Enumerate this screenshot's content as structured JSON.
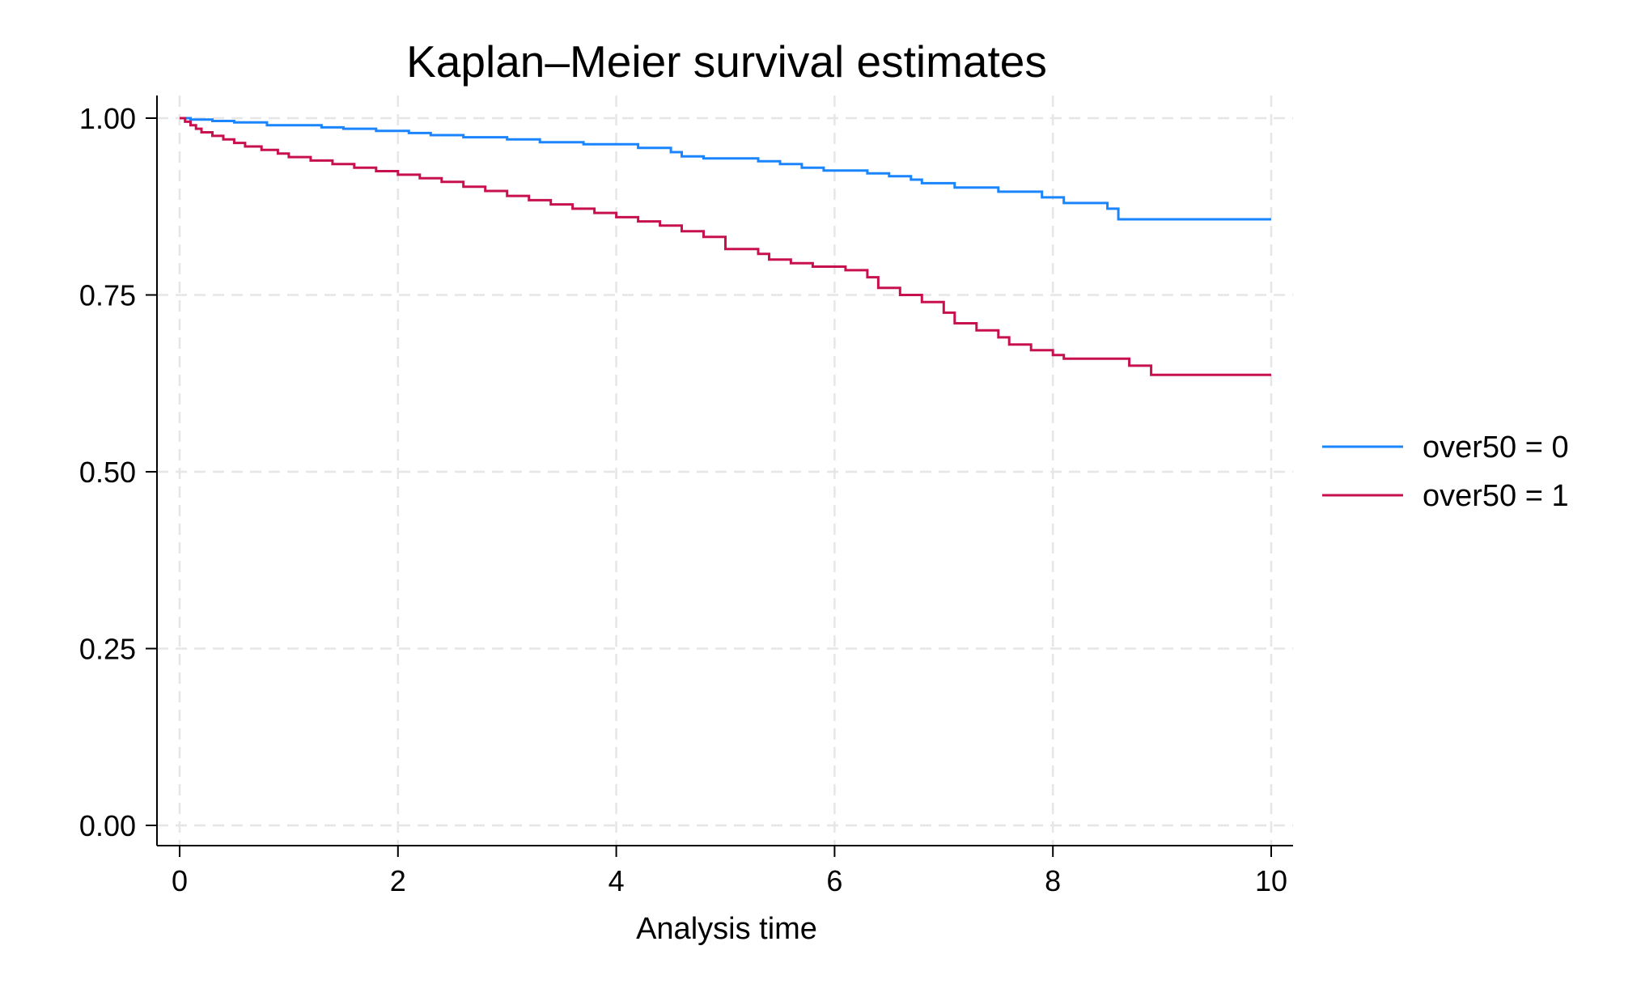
{
  "chart_data": {
    "type": "line",
    "step": true,
    "title": "Kaplan–Meier survival estimates",
    "xlabel": "Analysis time",
    "ylabel": "",
    "xlim": [
      0,
      10
    ],
    "ylim": [
      0,
      1
    ],
    "xticks": [
      "0",
      "2",
      "4",
      "6",
      "8",
      "10"
    ],
    "yticks": [
      "0.00",
      "0.25",
      "0.50",
      "0.75",
      "1.00"
    ],
    "grid": true,
    "legend_position": "right",
    "series": [
      {
        "name": "over50 = 0",
        "color": "#1a85ff",
        "points": [
          [
            0,
            1.0
          ],
          [
            0.1,
            0.998
          ],
          [
            0.3,
            0.996
          ],
          [
            0.5,
            0.994
          ],
          [
            0.8,
            0.99
          ],
          [
            1.3,
            0.987
          ],
          [
            1.5,
            0.985
          ],
          [
            1.8,
            0.982
          ],
          [
            2.1,
            0.979
          ],
          [
            2.3,
            0.976
          ],
          [
            2.6,
            0.973
          ],
          [
            3.0,
            0.97
          ],
          [
            3.3,
            0.966
          ],
          [
            3.7,
            0.963
          ],
          [
            4.2,
            0.958
          ],
          [
            4.5,
            0.952
          ],
          [
            4.6,
            0.946
          ],
          [
            4.8,
            0.943
          ],
          [
            5.3,
            0.939
          ],
          [
            5.5,
            0.935
          ],
          [
            5.7,
            0.93
          ],
          [
            5.9,
            0.926
          ],
          [
            6.3,
            0.922
          ],
          [
            6.5,
            0.918
          ],
          [
            6.7,
            0.913
          ],
          [
            6.8,
            0.908
          ],
          [
            7.1,
            0.902
          ],
          [
            7.5,
            0.896
          ],
          [
            7.9,
            0.888
          ],
          [
            8.1,
            0.88
          ],
          [
            8.5,
            0.872
          ],
          [
            8.6,
            0.857
          ],
          [
            10.0,
            0.857
          ]
        ]
      },
      {
        "name": "over50 = 1",
        "color": "#c8104f",
        "points": [
          [
            0,
            1.0
          ],
          [
            0.05,
            0.995
          ],
          [
            0.1,
            0.99
          ],
          [
            0.15,
            0.985
          ],
          [
            0.2,
            0.98
          ],
          [
            0.3,
            0.975
          ],
          [
            0.4,
            0.97
          ],
          [
            0.5,
            0.965
          ],
          [
            0.6,
            0.96
          ],
          [
            0.75,
            0.955
          ],
          [
            0.9,
            0.95
          ],
          [
            1.0,
            0.945
          ],
          [
            1.2,
            0.94
          ],
          [
            1.4,
            0.935
          ],
          [
            1.6,
            0.93
          ],
          [
            1.8,
            0.925
          ],
          [
            2.0,
            0.92
          ],
          [
            2.2,
            0.915
          ],
          [
            2.4,
            0.91
          ],
          [
            2.6,
            0.903
          ],
          [
            2.8,
            0.897
          ],
          [
            3.0,
            0.89
          ],
          [
            3.2,
            0.884
          ],
          [
            3.4,
            0.878
          ],
          [
            3.6,
            0.872
          ],
          [
            3.8,
            0.866
          ],
          [
            4.0,
            0.86
          ],
          [
            4.2,
            0.854
          ],
          [
            4.4,
            0.848
          ],
          [
            4.6,
            0.84
          ],
          [
            4.8,
            0.832
          ],
          [
            5.0,
            0.815
          ],
          [
            5.3,
            0.808
          ],
          [
            5.4,
            0.8
          ],
          [
            5.6,
            0.795
          ],
          [
            5.8,
            0.79
          ],
          [
            6.1,
            0.785
          ],
          [
            6.3,
            0.775
          ],
          [
            6.4,
            0.76
          ],
          [
            6.6,
            0.75
          ],
          [
            6.8,
            0.74
          ],
          [
            7.0,
            0.725
          ],
          [
            7.1,
            0.71
          ],
          [
            7.3,
            0.7
          ],
          [
            7.5,
            0.69
          ],
          [
            7.6,
            0.68
          ],
          [
            7.8,
            0.672
          ],
          [
            8.0,
            0.665
          ],
          [
            8.1,
            0.66
          ],
          [
            8.7,
            0.65
          ],
          [
            8.9,
            0.637
          ],
          [
            10.0,
            0.637
          ]
        ]
      }
    ]
  }
}
